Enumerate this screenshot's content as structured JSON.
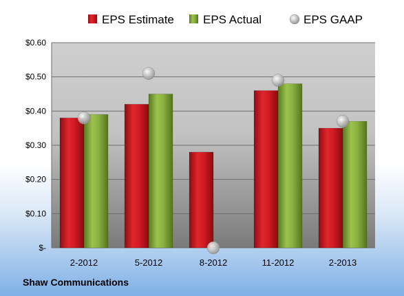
{
  "company_name": "Shaw Communications",
  "chart_data": {
    "type": "bar",
    "title": "",
    "xlabel": "",
    "ylabel": "",
    "categories": [
      "2-2012",
      "5-2012",
      "8-2012",
      "11-2012",
      "2-2013"
    ],
    "series": [
      {
        "name": "EPS Estimate",
        "kind": "bar",
        "color": "#c0141c",
        "values": [
          0.38,
          0.42,
          0.28,
          0.46,
          0.35
        ]
      },
      {
        "name": "EPS Actual",
        "kind": "bar",
        "color": "#7fa23a",
        "values": [
          0.39,
          0.45,
          null,
          0.48,
          0.37
        ]
      },
      {
        "name": "EPS GAAP",
        "kind": "marker",
        "color": "#a9a9a9",
        "values": [
          0.38,
          0.51,
          0.0,
          0.49,
          0.37
        ]
      }
    ],
    "ylim": [
      0,
      0.6
    ],
    "yticks": [
      0,
      0.1,
      0.2,
      0.3,
      0.4,
      0.5,
      0.6
    ],
    "ytick_labels": [
      "$-",
      "$0.10",
      "$0.20",
      "$0.30",
      "$0.40",
      "$0.50",
      "$0.60"
    ],
    "grid": true,
    "legend_position": "top"
  }
}
